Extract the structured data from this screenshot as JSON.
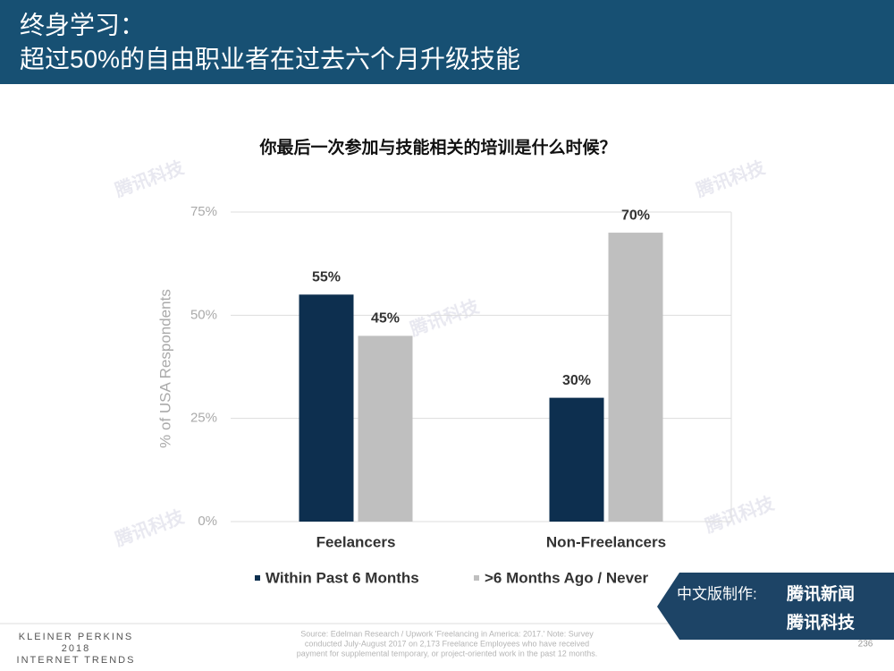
{
  "header": {
    "title_lines": [
      "终身学习：",
      "超过50%的自由职业者在过去六个月升级技能"
    ]
  },
  "chart_data": {
    "type": "bar",
    "title": "你最后一次参加与技能相关的培训是什么时候？",
    "y_label": "% of USA Respondents",
    "categories": [
      "Feelancers",
      "Non-Freelancers"
    ],
    "series": [
      {
        "name": "Within Past 6 Months",
        "color": "#0d2f4f",
        "values": [
          55,
          30
        ],
        "value_labels": [
          "55%",
          "30%"
        ]
      },
      {
        "name": ">6 Months Ago / Never",
        "color": "#bfbfbf",
        "values": [
          45,
          70
        ],
        "value_labels": [
          "45%",
          "70%"
        ]
      }
    ],
    "ylim": [
      0,
      75
    ],
    "yticks": [
      {
        "value": 0,
        "label": "0%"
      },
      {
        "value": 25,
        "label": "25%"
      },
      {
        "value": 50,
        "label": "50%"
      },
      {
        "value": 75,
        "label": "75%"
      }
    ],
    "grid": true
  },
  "source_lines": [
    "Source: Edelman Research / Upwork 'Freelancing in America: 2017.'  Note: Survey",
    "conducted July-August 2017 on 2,173 Freelance Employees who have received",
    "payment for supplemental temporary, or project-oriented work in the past 12 months."
  ],
  "footer": {
    "brand_lines": [
      "KLEINER PERKINS",
      "2018",
      "INTERNET TRENDS"
    ],
    "page_number": "236"
  },
  "badge": {
    "label": "中文版制作:",
    "brand_1": "腾讯新闻",
    "brand_2": "腾讯科技"
  },
  "watermark": "腾讯科技"
}
